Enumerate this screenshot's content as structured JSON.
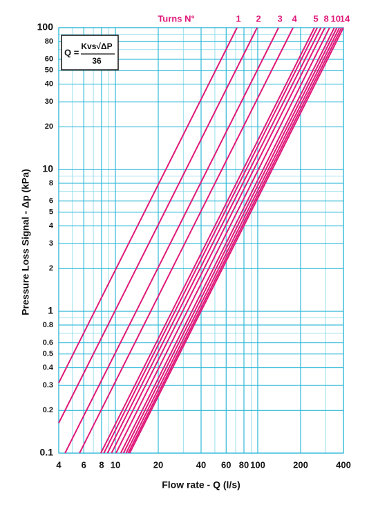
{
  "chart_data": {
    "type": "line",
    "title": "Turns N°",
    "xlabel": "Flow rate - Q (l/s)",
    "ylabel": "Pressure Loss Signal  - Δp (kPa)",
    "formula": {
      "lhs": "Q =",
      "numerator": "Kvs√ΔP",
      "denominator": "36"
    },
    "log_x": true,
    "log_y": true,
    "grid": true,
    "xlim": [
      4,
      400
    ],
    "ylim": [
      0.1,
      100
    ],
    "xticks": [
      4,
      6,
      8,
      10,
      20,
      40,
      60,
      80,
      100,
      200,
      400
    ],
    "yticks": [
      0.1,
      0.2,
      0.3,
      0.4,
      0.5,
      0.6,
      0.8,
      1,
      2,
      3,
      4,
      5,
      6,
      8,
      10,
      20,
      30,
      40,
      50,
      60,
      80,
      100
    ],
    "xgrid": [
      5,
      7,
      9,
      30,
      50,
      70,
      90,
      300
    ],
    "ygrid": [
      0.7,
      0.9,
      7,
      9,
      70,
      90
    ],
    "series": [
      {
        "name": "1",
        "color": "#e0197a",
        "x": [
          4,
          71.5
        ],
        "values": [
          0.313,
          100
        ]
      },
      {
        "name": "2",
        "color": "#e0197a",
        "x": [
          4,
          99
        ],
        "values": [
          0.163,
          100
        ]
      },
      {
        "name": "3",
        "color": "#e0197a",
        "x": [
          4.43,
          140
        ],
        "values": [
          0.1,
          100
        ]
      },
      {
        "name": "4",
        "color": "#e0197a",
        "x": [
          5.6,
          177
        ],
        "values": [
          0.1,
          100
        ]
      },
      {
        "name": "5",
        "color": "#e0197a",
        "x": [
          7.9,
          250
        ],
        "values": [
          0.1,
          100
        ]
      },
      {
        "name": null,
        "color": "#e0197a",
        "x": [
          8.3,
          262
        ],
        "values": [
          0.1,
          100
        ]
      },
      {
        "name": null,
        "color": "#e0197a",
        "x": [
          8.8,
          278
        ],
        "values": [
          0.1,
          100
        ]
      },
      {
        "name": "8",
        "color": "#e0197a",
        "x": [
          9.4,
          296
        ],
        "values": [
          0.1,
          100
        ]
      },
      {
        "name": null,
        "color": "#e0197a",
        "x": [
          10.1,
          320
        ],
        "values": [
          0.1,
          100
        ]
      },
      {
        "name": "10",
        "color": "#e0197a",
        "x": [
          10.9,
          345
        ],
        "values": [
          0.1,
          100
        ]
      },
      {
        "name": null,
        "color": "#e0197a",
        "x": [
          11.4,
          360
        ],
        "values": [
          0.1,
          100
        ]
      },
      {
        "name": null,
        "color": "#e0197a",
        "x": [
          11.9,
          375
        ],
        "values": [
          0.1,
          100
        ]
      },
      {
        "name": null,
        "color": "#e0197a",
        "x": [
          12.3,
          388
        ],
        "values": [
          0.1,
          100
        ]
      },
      {
        "name": "14",
        "color": "#e0197a",
        "x": [
          12.6,
          400
        ],
        "values": [
          0.1,
          100
        ]
      }
    ]
  }
}
